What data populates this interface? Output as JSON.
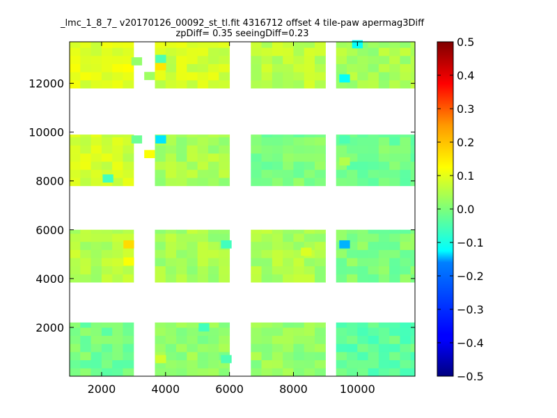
{
  "chart_data": {
    "type": "heatmap",
    "title_line1": "_lmc_1_8_7_ v20170126_00092_st_tl.fit 4316712 offset 4 tile-paw apermag3Diff",
    "title_line2": "zpDiff= 0.35 seeingDiff=0.23",
    "xlim": [
      1000,
      11800
    ],
    "ylim": [
      0,
      13700
    ],
    "x_ticks": [
      2000,
      4000,
      6000,
      8000,
      10000
    ],
    "y_ticks": [
      2000,
      4000,
      6000,
      8000,
      10000,
      12000
    ],
    "x_tick_labels": [
      "2000",
      "4000",
      "6000",
      "8000",
      "10000"
    ],
    "y_tick_labels": [
      "2000",
      "4000",
      "6000",
      "8000",
      "10000",
      "12000"
    ],
    "colormap": "jet",
    "color_range": [
      -0.5,
      0.5
    ],
    "colorbar_ticks": [
      0.5,
      0.4,
      0.3,
      0.2,
      0.1,
      0.0,
      -0.1,
      -0.2,
      -0.3,
      -0.4,
      -0.5
    ],
    "colorbar_tick_labels": [
      "0.5",
      "0.4",
      "0.3",
      "0.2",
      "0.1",
      "0.0",
      "−0.1",
      "−0.2",
      "−0.3",
      "−0.4",
      "−0.5"
    ],
    "cell_size": [
      333,
      333
    ],
    "x_blocks": [
      {
        "x0": 1000,
        "x1": 3000
      },
      {
        "x0": 3667,
        "x1": 6000
      },
      {
        "x0": 6667,
        "x1": 9000
      },
      {
        "x0": 9333,
        "x1": 11800
      }
    ],
    "y_blocks": [
      {
        "y0": 0,
        "y1": 2200
      },
      {
        "y0": 3850,
        "y1": 6000
      },
      {
        "y0": 7800,
        "y1": 9900
      },
      {
        "y0": 11800,
        "y1": 13700
      }
    ],
    "base_values": [
      [
        -0.01,
        0.02,
        0.02,
        -0.03
      ],
      [
        0.05,
        0.04,
        0.04,
        0.0
      ],
      [
        0.08,
        0.04,
        0.0,
        -0.01
      ],
      [
        0.1,
        0.08,
        0.06,
        0.04
      ]
    ],
    "outliers": [
      {
        "x": 3100,
        "y": 12900,
        "v": 0.02
      },
      {
        "x": 3500,
        "y": 12300,
        "v": 0.03
      },
      {
        "x": 3850,
        "y": 12700,
        "v": 0.15
      },
      {
        "x": 3850,
        "y": 13000,
        "v": -0.05
      },
      {
        "x": 9600,
        "y": 12200,
        "v": -0.12
      },
      {
        "x": 10000,
        "y": 13600,
        "v": -0.12
      },
      {
        "x": 3100,
        "y": 9700,
        "v": -0.02
      },
      {
        "x": 3500,
        "y": 9100,
        "v": 0.12
      },
      {
        "x": 3850,
        "y": 9700,
        "v": -0.15
      },
      {
        "x": 9600,
        "y": 9700,
        "v": -0.05
      },
      {
        "x": 9600,
        "y": 8800,
        "v": 0.05
      },
      {
        "x": 2200,
        "y": 8100,
        "v": -0.06
      },
      {
        "x": 2850,
        "y": 5400,
        "v": 0.16
      },
      {
        "x": 2850,
        "y": 4700,
        "v": 0.12
      },
      {
        "x": 9600,
        "y": 5400,
        "v": -0.2
      },
      {
        "x": 5900,
        "y": 5400,
        "v": -0.06
      },
      {
        "x": 5200,
        "y": 2000,
        "v": -0.06
      },
      {
        "x": 3850,
        "y": 700,
        "v": 0.08
      },
      {
        "x": 5900,
        "y": 700,
        "v": -0.05
      },
      {
        "x": 8400,
        "y": 5100,
        "v": 0.09
      }
    ],
    "noise_seed": 7
  }
}
